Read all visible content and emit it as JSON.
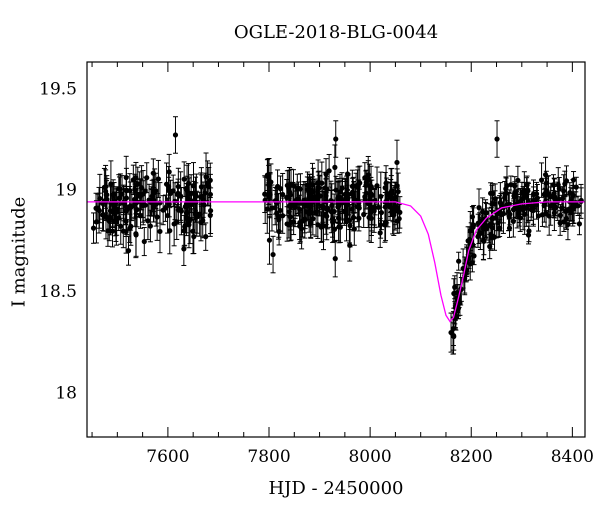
{
  "chart_data": {
    "type": "scatter",
    "title": "OGLE-2018-BLG-0044",
    "xlabel": "HJD - 2450000",
    "ylabel": "I magnitude",
    "xlim": [
      7440,
      8425
    ],
    "ylim": [
      19.63,
      17.78
    ],
    "y_inverted": true,
    "x_ticks": [
      7600,
      7800,
      8000,
      8200,
      8400
    ],
    "y_ticks": [
      18,
      18.5,
      19,
      19.5
    ],
    "x_minor_step": 50,
    "y_minor_step": 0.1,
    "grid": false,
    "colors": {
      "data": "#000000",
      "model": "#ff00ff"
    },
    "series": [
      {
        "kind": "errorbar",
        "point_sets": [
          {
            "x_range": [
              7450,
              7685
            ],
            "n": 170,
            "mean": 18.92,
            "scatter": 0.075,
            "err_range": [
              0.06,
              0.12
            ]
          },
          {
            "x_range": [
              7790,
              8060
            ],
            "n": 230,
            "mean": 18.93,
            "scatter": 0.07,
            "err_range": [
              0.06,
              0.12
            ]
          },
          {
            "x_range": [
              8160,
              8420
            ],
            "n": 200,
            "mean_model": true,
            "scatter": 0.06,
            "err_range": [
              0.04,
              0.1
            ]
          }
        ],
        "highlights": [
          {
            "x": 7615,
            "y": 19.27
          },
          {
            "x": 7932,
            "y": 19.25
          },
          {
            "x": 8251,
            "y": 19.25
          },
          {
            "x": 7931,
            "y": 18.66
          },
          {
            "x": 7808,
            "y": 18.68
          },
          {
            "x": 8165,
            "y": 18.28
          }
        ]
      },
      {
        "kind": "model",
        "curve": [
          [
            7440,
            18.94
          ],
          [
            8050,
            18.94
          ],
          [
            8080,
            18.92
          ],
          [
            8100,
            18.87
          ],
          [
            8115,
            18.78
          ],
          [
            8128,
            18.64
          ],
          [
            8140,
            18.48
          ],
          [
            8150,
            18.38
          ],
          [
            8158,
            18.35
          ],
          [
            8165,
            18.37
          ],
          [
            8175,
            18.47
          ],
          [
            8185,
            18.58
          ],
          [
            8195,
            18.7
          ],
          [
            8210,
            18.8
          ],
          [
            8230,
            18.86
          ],
          [
            8260,
            18.91
          ],
          [
            8300,
            18.93
          ],
          [
            8350,
            18.94
          ],
          [
            8425,
            18.94
          ]
        ]
      }
    ]
  }
}
